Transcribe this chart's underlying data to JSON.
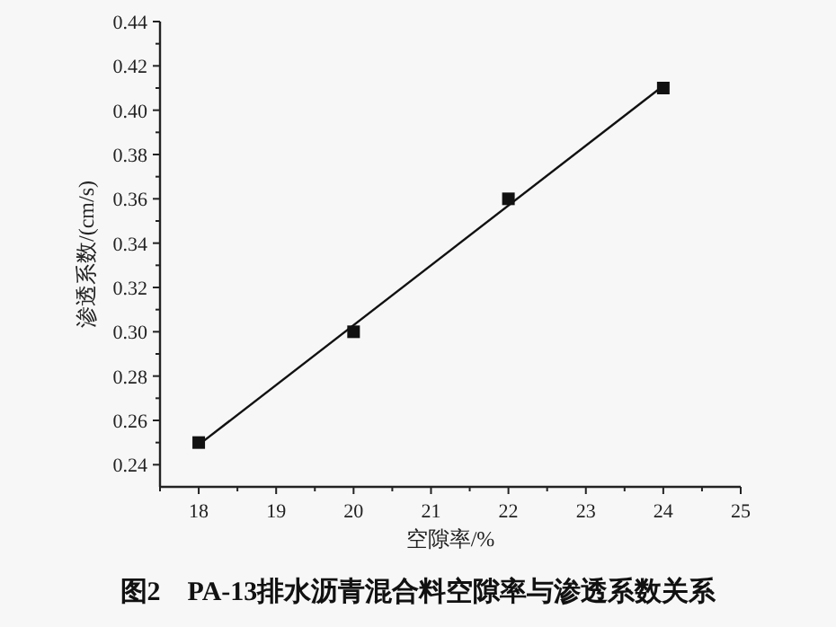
{
  "chart_data": {
    "type": "line",
    "title": "图2　PA-13排水沥青混合料空隙率与渗透系数关系",
    "xlabel": "空隙率/%",
    "ylabel": "渗透系数/(cm/s)",
    "series": [
      {
        "type": "scatter",
        "color": "#111111",
        "marker": "square",
        "x": [
          18,
          20,
          22,
          24
        ],
        "values": [
          0.25,
          0.3,
          0.36,
          0.41
        ]
      },
      {
        "color": "#111111",
        "marker": "none",
        "x": [
          18,
          24
        ],
        "values": [
          0.249,
          0.411
        ]
      }
    ],
    "xlim": [
      17.5,
      25
    ],
    "xticks": [
      18,
      19,
      20,
      21,
      22,
      23,
      24,
      25
    ],
    "ylim": [
      0.23,
      0.44
    ],
    "yticks": [
      {
        "value": 0.24,
        "label": "0.24"
      },
      {
        "value": 0.26,
        "label": "0.26"
      },
      {
        "value": 0.28,
        "label": "0.28"
      },
      {
        "value": 0.3,
        "label": "0.30"
      },
      {
        "value": 0.32,
        "label": "0.32"
      },
      {
        "value": 0.34,
        "label": "0.34"
      },
      {
        "value": 0.36,
        "label": "0.36"
      },
      {
        "value": 0.38,
        "label": "0.38"
      },
      {
        "value": 0.4,
        "label": "0.40"
      },
      {
        "value": 0.42,
        "label": "0.42"
      },
      {
        "value": 0.44,
        "label": "0.44"
      }
    ],
    "grid": false
  }
}
